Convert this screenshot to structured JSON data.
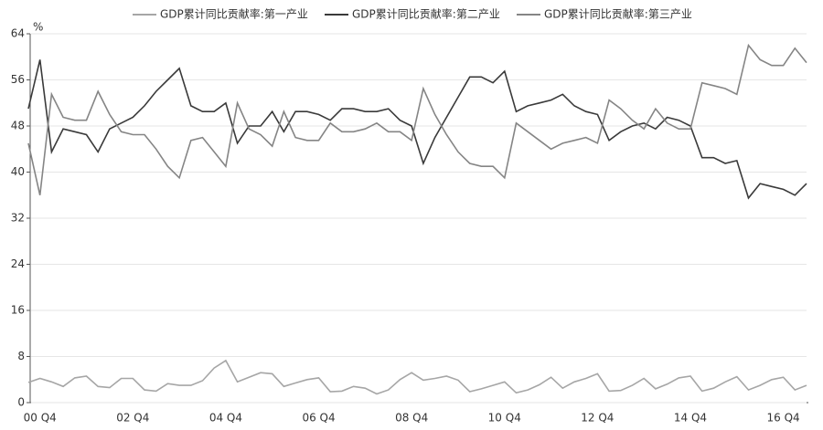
{
  "chart_data": {
    "type": "line",
    "y_unit": "%",
    "categories": [
      null,
      "00 Q4",
      null,
      null,
      null,
      null,
      null,
      null,
      null,
      "02 Q4",
      null,
      null,
      null,
      null,
      null,
      null,
      null,
      "04 Q4",
      null,
      null,
      null,
      null,
      null,
      null,
      null,
      "06 Q4",
      null,
      null,
      null,
      null,
      null,
      null,
      null,
      "08 Q4",
      null,
      null,
      null,
      null,
      null,
      null,
      null,
      "10 Q4",
      null,
      null,
      null,
      null,
      null,
      null,
      null,
      "12 Q4",
      null,
      null,
      null,
      null,
      null,
      null,
      null,
      "14 Q4",
      null,
      null,
      null,
      null,
      null,
      null,
      null,
      "16 Q4",
      null,
      null
    ],
    "series": [
      {
        "name": "GDP累计同比贡献率:第一产业",
        "color": "#a6a6a6",
        "values": [
          3.5,
          4.2,
          3.6,
          2.8,
          4.3,
          4.6,
          2.8,
          2.6,
          4.2,
          4.2,
          2.2,
          2.0,
          3.3,
          3.0,
          3.0,
          3.8,
          6.0,
          7.3,
          3.6,
          4.4,
          5.2,
          5.0,
          2.8,
          3.4,
          4.0,
          4.3,
          1.9,
          2.0,
          2.8,
          2.5,
          1.5,
          2.2,
          4.0,
          5.2,
          3.9,
          4.2,
          4.6,
          3.9,
          1.9,
          2.4,
          3.0,
          3.6,
          1.7,
          2.2,
          3.1,
          4.4,
          2.5,
          3.6,
          4.2,
          5.0,
          2.0,
          2.1,
          3.0,
          4.2,
          2.4,
          3.2,
          4.3,
          4.6,
          2.0,
          2.5,
          3.6,
          4.5,
          2.2,
          3.0,
          4.0,
          4.4,
          2.2,
          3.0
        ]
      },
      {
        "name": "GDP累计同比贡献率:第二产业",
        "color": "#3a3a3a",
        "values": [
          51,
          59.5,
          43.5,
          47.5,
          47,
          46.5,
          43.5,
          47.5,
          48.5,
          49.5,
          51.5,
          54,
          56,
          58,
          51.5,
          50.5,
          50.5,
          52,
          45,
          48,
          48,
          50.5,
          47,
          50.5,
          50.5,
          50,
          49,
          51,
          51,
          50.5,
          50.5,
          51,
          49,
          48,
          41.5,
          46,
          49.5,
          53,
          56.5,
          56.5,
          55.5,
          57.5,
          50.5,
          51.5,
          52,
          52.5,
          53.5,
          51.5,
          50.5,
          50,
          45.5,
          47,
          48,
          48.5,
          47.5,
          49.5,
          49,
          48,
          42.5,
          42.5,
          41.5,
          42,
          35.5,
          38,
          37.5,
          37,
          36,
          38
        ]
      },
      {
        "name": "GDP累计同比贡献率:第三产业",
        "color": "#858585",
        "values": [
          45,
          36,
          53.5,
          49.5,
          49,
          49,
          54,
          50,
          47,
          46.5,
          46.5,
          44,
          41,
          39,
          45.5,
          46,
          43.5,
          41,
          52,
          47.5,
          46.5,
          44.5,
          50.5,
          46,
          45.5,
          45.5,
          48.5,
          47,
          47,
          47.5,
          48.5,
          47,
          47,
          45.5,
          54.5,
          50,
          46.5,
          43.5,
          41.5,
          41,
          41,
          39,
          48.5,
          47,
          45.5,
          44,
          45,
          45.5,
          46,
          45,
          52.5,
          51,
          49,
          47.5,
          51,
          48.5,
          47.5,
          47.5,
          55.5,
          55,
          54.5,
          53.5,
          62,
          59.5,
          58.5,
          58.5,
          61.5,
          59
        ]
      }
    ],
    "ylim": [
      0,
      64
    ],
    "yticks": [
      0,
      8,
      16,
      24,
      32,
      40,
      48,
      56,
      64
    ],
    "grid": true,
    "legend": "top"
  }
}
